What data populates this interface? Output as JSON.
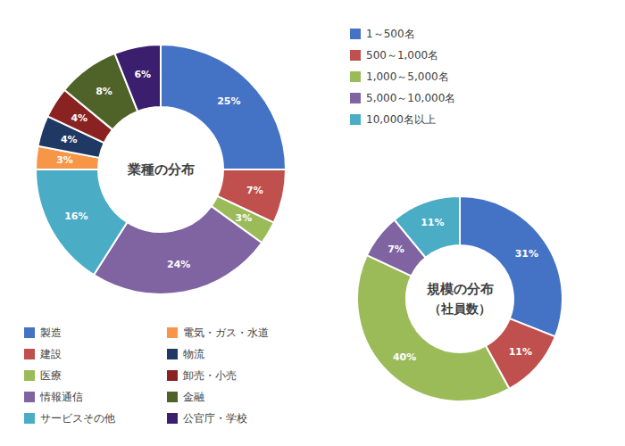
{
  "chart_data": [
    {
      "type": "pie",
      "title": "業種の分布",
      "categories": [
        "製造",
        "建設",
        "医療",
        "情報通信",
        "サービスその他",
        "電気・ガス・水道",
        "物流",
        "卸売・小売",
        "金融",
        "公官庁・学校"
      ],
      "values": [
        25,
        7,
        3,
        24,
        16,
        3,
        4,
        4,
        8,
        6
      ],
      "value_labels": [
        "25%",
        "7%",
        "3%",
        "24%",
        "16%",
        "3%",
        "4%",
        "4%",
        "8%",
        "6%"
      ],
      "colors": [
        "#4472C4",
        "#C0504D",
        "#9BBB59",
        "#8064A2",
        "#4BACC6",
        "#F79646",
        "#1F3864",
        "#8B2222",
        "#4F6228",
        "#3B1F6E"
      ],
      "data_labels": true,
      "legend": "lower left"
    },
    {
      "type": "pie",
      "title": "規模の分布",
      "subtitle": "（社員数）",
      "categories": [
        "1～500名",
        "500～1,000名",
        "1,000～5,000名",
        "5,000～10,000名",
        "10,000名以上"
      ],
      "values": [
        31,
        11,
        40,
        7,
        11
      ],
      "value_labels": [
        "31%",
        "11%",
        "40%",
        "7%",
        "11%"
      ],
      "colors": [
        "#4472C4",
        "#C0504D",
        "#9BBB59",
        "#8064A2",
        "#4BACC6"
      ],
      "data_labels": true,
      "legend": "upper right"
    }
  ]
}
